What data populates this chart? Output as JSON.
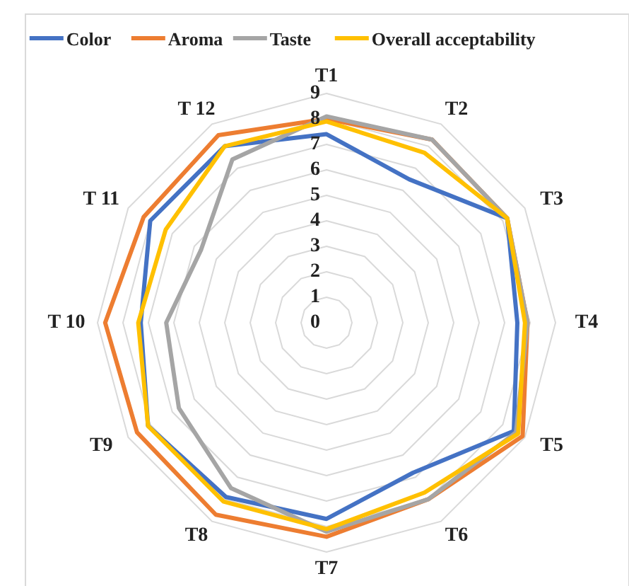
{
  "chart_data": {
    "type": "radar",
    "categories": [
      "T1",
      "T2",
      "T3",
      "T4",
      "T5",
      "T6",
      "T7",
      "T8",
      "T9",
      "T 10",
      "T 11",
      "T 12"
    ],
    "series": [
      {
        "name": "Color",
        "color": "#4472c4",
        "values": [
          7.4,
          6.5,
          8.2,
          7.5,
          8.5,
          6.8,
          7.7,
          7.9,
          8.1,
          7.3,
          8.0,
          8.0
        ]
      },
      {
        "name": "Aroma",
        "color": "#ed7d31",
        "values": [
          8.0,
          8.3,
          8.2,
          7.9,
          8.9,
          8.0,
          8.4,
          8.7,
          8.6,
          8.7,
          8.3,
          8.5
        ]
      },
      {
        "name": "Taste",
        "color": "#a5a5a5",
        "values": [
          8.1,
          8.3,
          8.2,
          7.9,
          8.6,
          8.0,
          8.2,
          7.5,
          6.7,
          6.3,
          5.7,
          7.4
        ]
      },
      {
        "name": "Overall acceptability",
        "color": "#ffc000",
        "values": [
          7.9,
          7.7,
          8.2,
          7.8,
          8.7,
          7.7,
          8.1,
          8.1,
          8.1,
          7.4,
          7.3,
          8.0
        ]
      }
    ],
    "ylim": [
      0,
      9
    ],
    "yticks": [
      0,
      1,
      2,
      3,
      4,
      5,
      6,
      7,
      8,
      9
    ],
    "grid": true,
    "legend": "top"
  }
}
